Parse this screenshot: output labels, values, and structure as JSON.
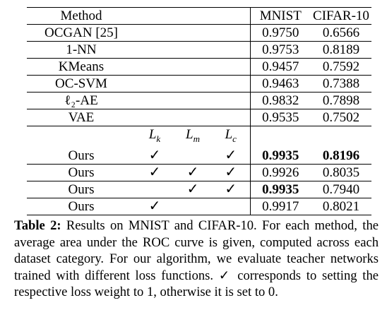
{
  "table": {
    "header": {
      "method": "Method",
      "mnist": "MNIST",
      "cifar": "CIFAR-10"
    },
    "baselines": [
      {
        "method": "OCGAN [25]",
        "mnist": "0.9750",
        "cifar": "0.6566"
      },
      {
        "method": "1-NN",
        "mnist": "0.9753",
        "cifar": "0.8189"
      },
      {
        "method": "KMeans",
        "mnist": "0.9457",
        "cifar": "0.7592"
      },
      {
        "method": "OC-SVM",
        "mnist": "0.9463",
        "cifar": "0.7388"
      },
      {
        "method": "ℓ₂-AE",
        "mnist": "0.9832",
        "cifar": "0.7898"
      },
      {
        "method": "VAE",
        "mnist": "0.9535",
        "cifar": "0.7502"
      }
    ],
    "loss_headers": {
      "lk": "L_k",
      "lm": "L_m",
      "lc": "L_c"
    },
    "ours": [
      {
        "method": "Ours",
        "lk": "✓",
        "lm": "",
        "lc": "✓",
        "mnist": "0.9935",
        "cifar": "0.8196",
        "mnist_bold": true,
        "cifar_bold": true
      },
      {
        "method": "Ours",
        "lk": "✓",
        "lm": "✓",
        "lc": "✓",
        "mnist": "0.9926",
        "cifar": "0.8035",
        "mnist_bold": false,
        "cifar_bold": false
      },
      {
        "method": "Ours",
        "lk": "",
        "lm": "✓",
        "lc": "✓",
        "mnist": "0.9935",
        "cifar": "0.7940",
        "mnist_bold": true,
        "cifar_bold": false
      },
      {
        "method": "Ours",
        "lk": "✓",
        "lm": "",
        "lc": "",
        "mnist": "0.9917",
        "cifar": "0.8021",
        "mnist_bold": false,
        "cifar_bold": false
      }
    ]
  },
  "caption": {
    "label": "Table 2:",
    "text": " Results on MNIST and CIFAR-10. For each method, the average area under the ROC curve is given, computed across each dataset category. For our algorithm, we evaluate teacher networks trained with different loss functions. ✓ corresponds to setting the respective loss weight to 1, otherwise it is set to 0."
  }
}
